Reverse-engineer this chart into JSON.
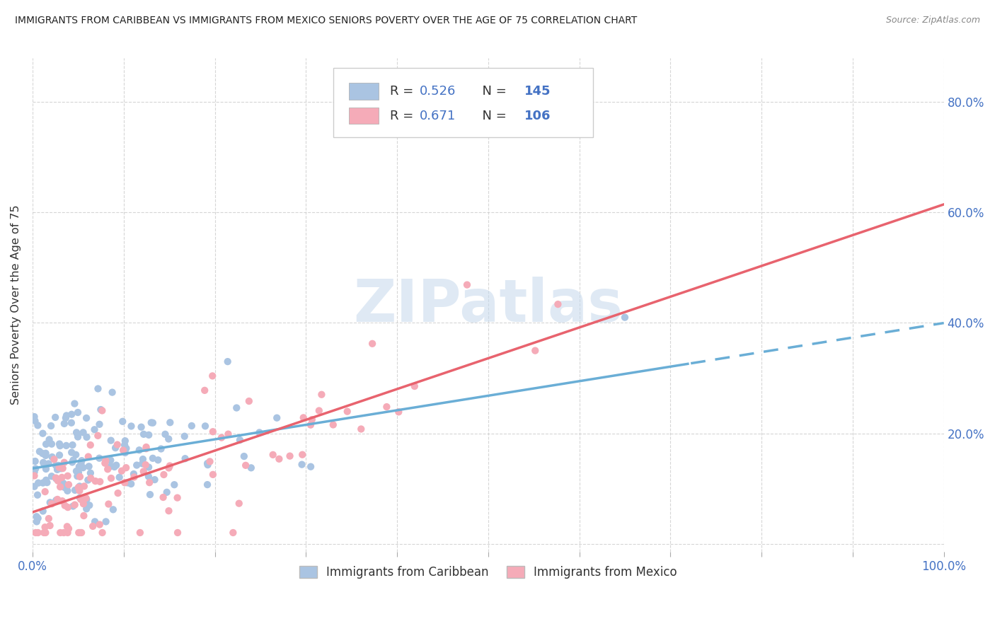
{
  "title": "IMMIGRANTS FROM CARIBBEAN VS IMMIGRANTS FROM MEXICO SENIORS POVERTY OVER THE AGE OF 75 CORRELATION CHART",
  "source": "Source: ZipAtlas.com",
  "ylabel": "Seniors Poverty Over the Age of 75",
  "watermark": "ZIPatlas",
  "series1_label": "Immigrants from Caribbean",
  "series1_R": 0.526,
  "series1_N": 145,
  "series1_color": "#aac4e2",
  "series1_line_color": "#6aaed6",
  "series2_label": "Immigrants from Mexico",
  "series2_R": 0.671,
  "series2_N": 106,
  "series2_color": "#f5abb8",
  "series2_line_color": "#e8636e",
  "title_color": "#222222",
  "source_color": "#888888",
  "axis_tick_color": "#4472c4",
  "grid_color": "#cccccc",
  "background_color": "#ffffff",
  "watermark_color": "#c5d8ec",
  "legend_R_color": "#4472c4",
  "legend_N_color": "#4472c4",
  "legend_text_color": "#333333",
  "legend_edge_color": "#cccccc",
  "ylim_low": -0.015,
  "ylim_high": 0.88,
  "xlim_low": 0.0,
  "xlim_high": 1.0,
  "dashed_split": 0.72
}
